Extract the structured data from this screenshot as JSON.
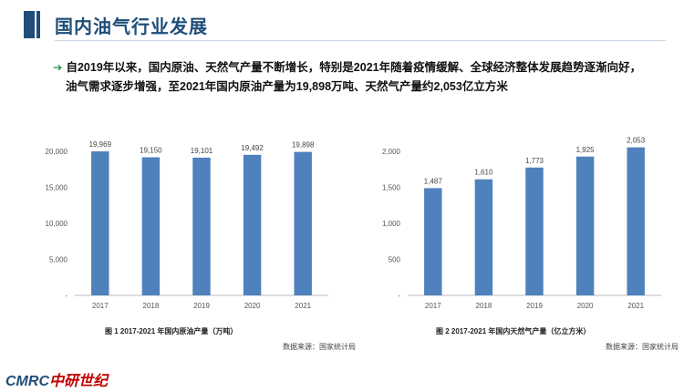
{
  "header": {
    "title": "国内油气行业发展",
    "summary_line1": "自2019年以来，国内原油、天然气产量不断增长，特别是2021年随着疫情缓解、全球经济整体发展趋势逐渐向好，",
    "summary_line2": "油气需求逐步增强，至2021年国内原油产量为19,898万吨、天然气产量约2,053亿立方米"
  },
  "chart_data": [
    {
      "type": "bar",
      "categories": [
        "2017",
        "2018",
        "2019",
        "2020",
        "2021"
      ],
      "values": [
        19969,
        19150,
        19101,
        19492,
        19898
      ],
      "value_labels": [
        "19,969",
        "19,150",
        "19,101",
        "19,492",
        "19,898"
      ],
      "yticks": [
        "-",
        "5,000",
        "10,000",
        "15,000",
        "20,000"
      ],
      "ylim": [
        0,
        22000
      ],
      "grid": false,
      "color": "#4f81bd",
      "caption": "图 1 2017-2021 年国内原油产量（万吨）",
      "source": "数据来源：国家统计局"
    },
    {
      "type": "bar",
      "categories": [
        "2017",
        "2018",
        "2019",
        "2020",
        "2021"
      ],
      "values": [
        1487,
        1610,
        1773,
        1925,
        2053
      ],
      "value_labels": [
        "1,487",
        "1,610",
        "1,773",
        "1,925",
        "2,053"
      ],
      "yticks": [
        "-",
        "500",
        "1,000",
        "1,500",
        "2,000"
      ],
      "ylim": [
        0,
        2200
      ],
      "grid": false,
      "color": "#4f81bd",
      "caption": "图 2 2017-2021 年国内天然气产量（亿立方米）",
      "source": "数据来源：国家统计局"
    }
  ],
  "footer": {
    "logo_latin": "CMRC",
    "logo_cn": "中研世纪"
  }
}
